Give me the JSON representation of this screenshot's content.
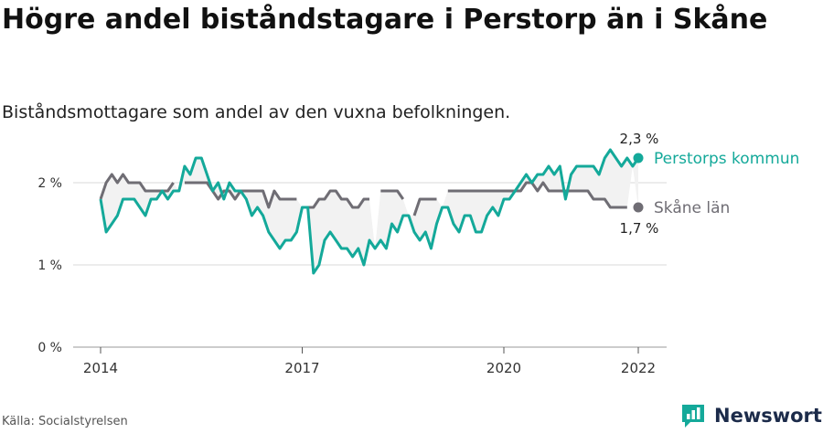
{
  "title": "Högre andel biståndstagare i Perstorp än i Skåne",
  "subtitle": "Biståndsmottagare som andel av den vuxna befolkningen.",
  "source": "Källa: Socialstyrelsen",
  "brand": "Newsworthy",
  "colors": {
    "perstorp": "#14a99a",
    "skane": "#6f6d74",
    "grid": "#d9d9d9",
    "band": "#f2f2f2"
  },
  "chart_data": {
    "type": "line",
    "x_start": "2014-01",
    "x_end": "2022-01",
    "ylim": [
      0,
      0.025
    ],
    "yticks": [
      {
        "value": 0,
        "label": "0 %"
      },
      {
        "value": 0.01,
        "label": "1 %"
      },
      {
        "value": 0.02,
        "label": "2 %"
      }
    ],
    "xticks": [
      {
        "value": 2014.0,
        "label": "2014"
      },
      {
        "value": 2017.0,
        "label": "2017"
      },
      {
        "value": 2020.0,
        "label": "2020"
      },
      {
        "value": 2022.0,
        "label": "2022"
      }
    ],
    "series": [
      {
        "name": "Perstorps kommun",
        "end_label": "2,3 %",
        "values": [
          0.018,
          0.014,
          0.015,
          0.016,
          0.018,
          0.018,
          0.018,
          0.017,
          0.016,
          0.018,
          0.018,
          0.019,
          0.018,
          0.019,
          0.019,
          0.022,
          0.021,
          0.023,
          0.023,
          0.021,
          0.019,
          0.02,
          0.018,
          0.02,
          0.019,
          0.019,
          0.018,
          0.016,
          0.017,
          0.016,
          0.014,
          0.013,
          0.012,
          0.013,
          0.013,
          0.014,
          0.017,
          0.017,
          0.009,
          0.01,
          0.013,
          0.014,
          0.013,
          0.012,
          0.012,
          0.011,
          0.012,
          0.01,
          0.013,
          0.012,
          0.013,
          0.012,
          0.015,
          0.014,
          0.016,
          0.016,
          0.014,
          0.013,
          0.014,
          0.012,
          0.015,
          0.017,
          0.017,
          0.015,
          0.014,
          0.016,
          0.016,
          0.014,
          0.014,
          0.016,
          0.017,
          0.016,
          0.018,
          0.018,
          0.019,
          0.02,
          0.021,
          0.02,
          0.021,
          0.021,
          0.022,
          0.021,
          0.022,
          0.018,
          0.021,
          0.022,
          0.022,
          0.022,
          0.022,
          0.021,
          0.023,
          0.024,
          0.023,
          0.022,
          0.023,
          0.022,
          0.023
        ]
      },
      {
        "name": "Skåne län",
        "end_label": "1,7 %",
        "values": [
          0.018,
          0.02,
          0.021,
          0.02,
          0.021,
          0.02,
          0.02,
          0.02,
          0.019,
          0.019,
          0.019,
          0.019,
          0.019,
          0.02,
          null,
          0.02,
          0.02,
          0.02,
          0.02,
          0.02,
          0.019,
          0.018,
          0.019,
          0.019,
          0.018,
          0.019,
          0.019,
          0.019,
          0.019,
          0.019,
          0.017,
          0.019,
          0.018,
          0.018,
          0.018,
          0.018,
          null,
          0.017,
          0.017,
          0.018,
          0.018,
          0.019,
          0.019,
          0.018,
          0.018,
          0.017,
          0.017,
          0.018,
          0.018,
          null,
          0.019,
          0.019,
          0.019,
          0.019,
          0.018,
          null,
          0.016,
          0.018,
          0.018,
          0.018,
          0.018,
          null,
          0.019,
          0.019,
          0.019,
          0.019,
          0.019,
          0.019,
          0.019,
          0.019,
          0.019,
          0.019,
          0.019,
          0.019,
          0.019,
          0.019,
          0.02,
          0.02,
          0.019,
          0.02,
          0.019,
          0.019,
          0.019,
          0.019,
          0.019,
          0.019,
          0.019,
          0.019,
          0.018,
          0.018,
          0.018,
          0.017,
          0.017,
          0.017,
          0.017,
          null,
          0.017
        ]
      }
    ]
  }
}
